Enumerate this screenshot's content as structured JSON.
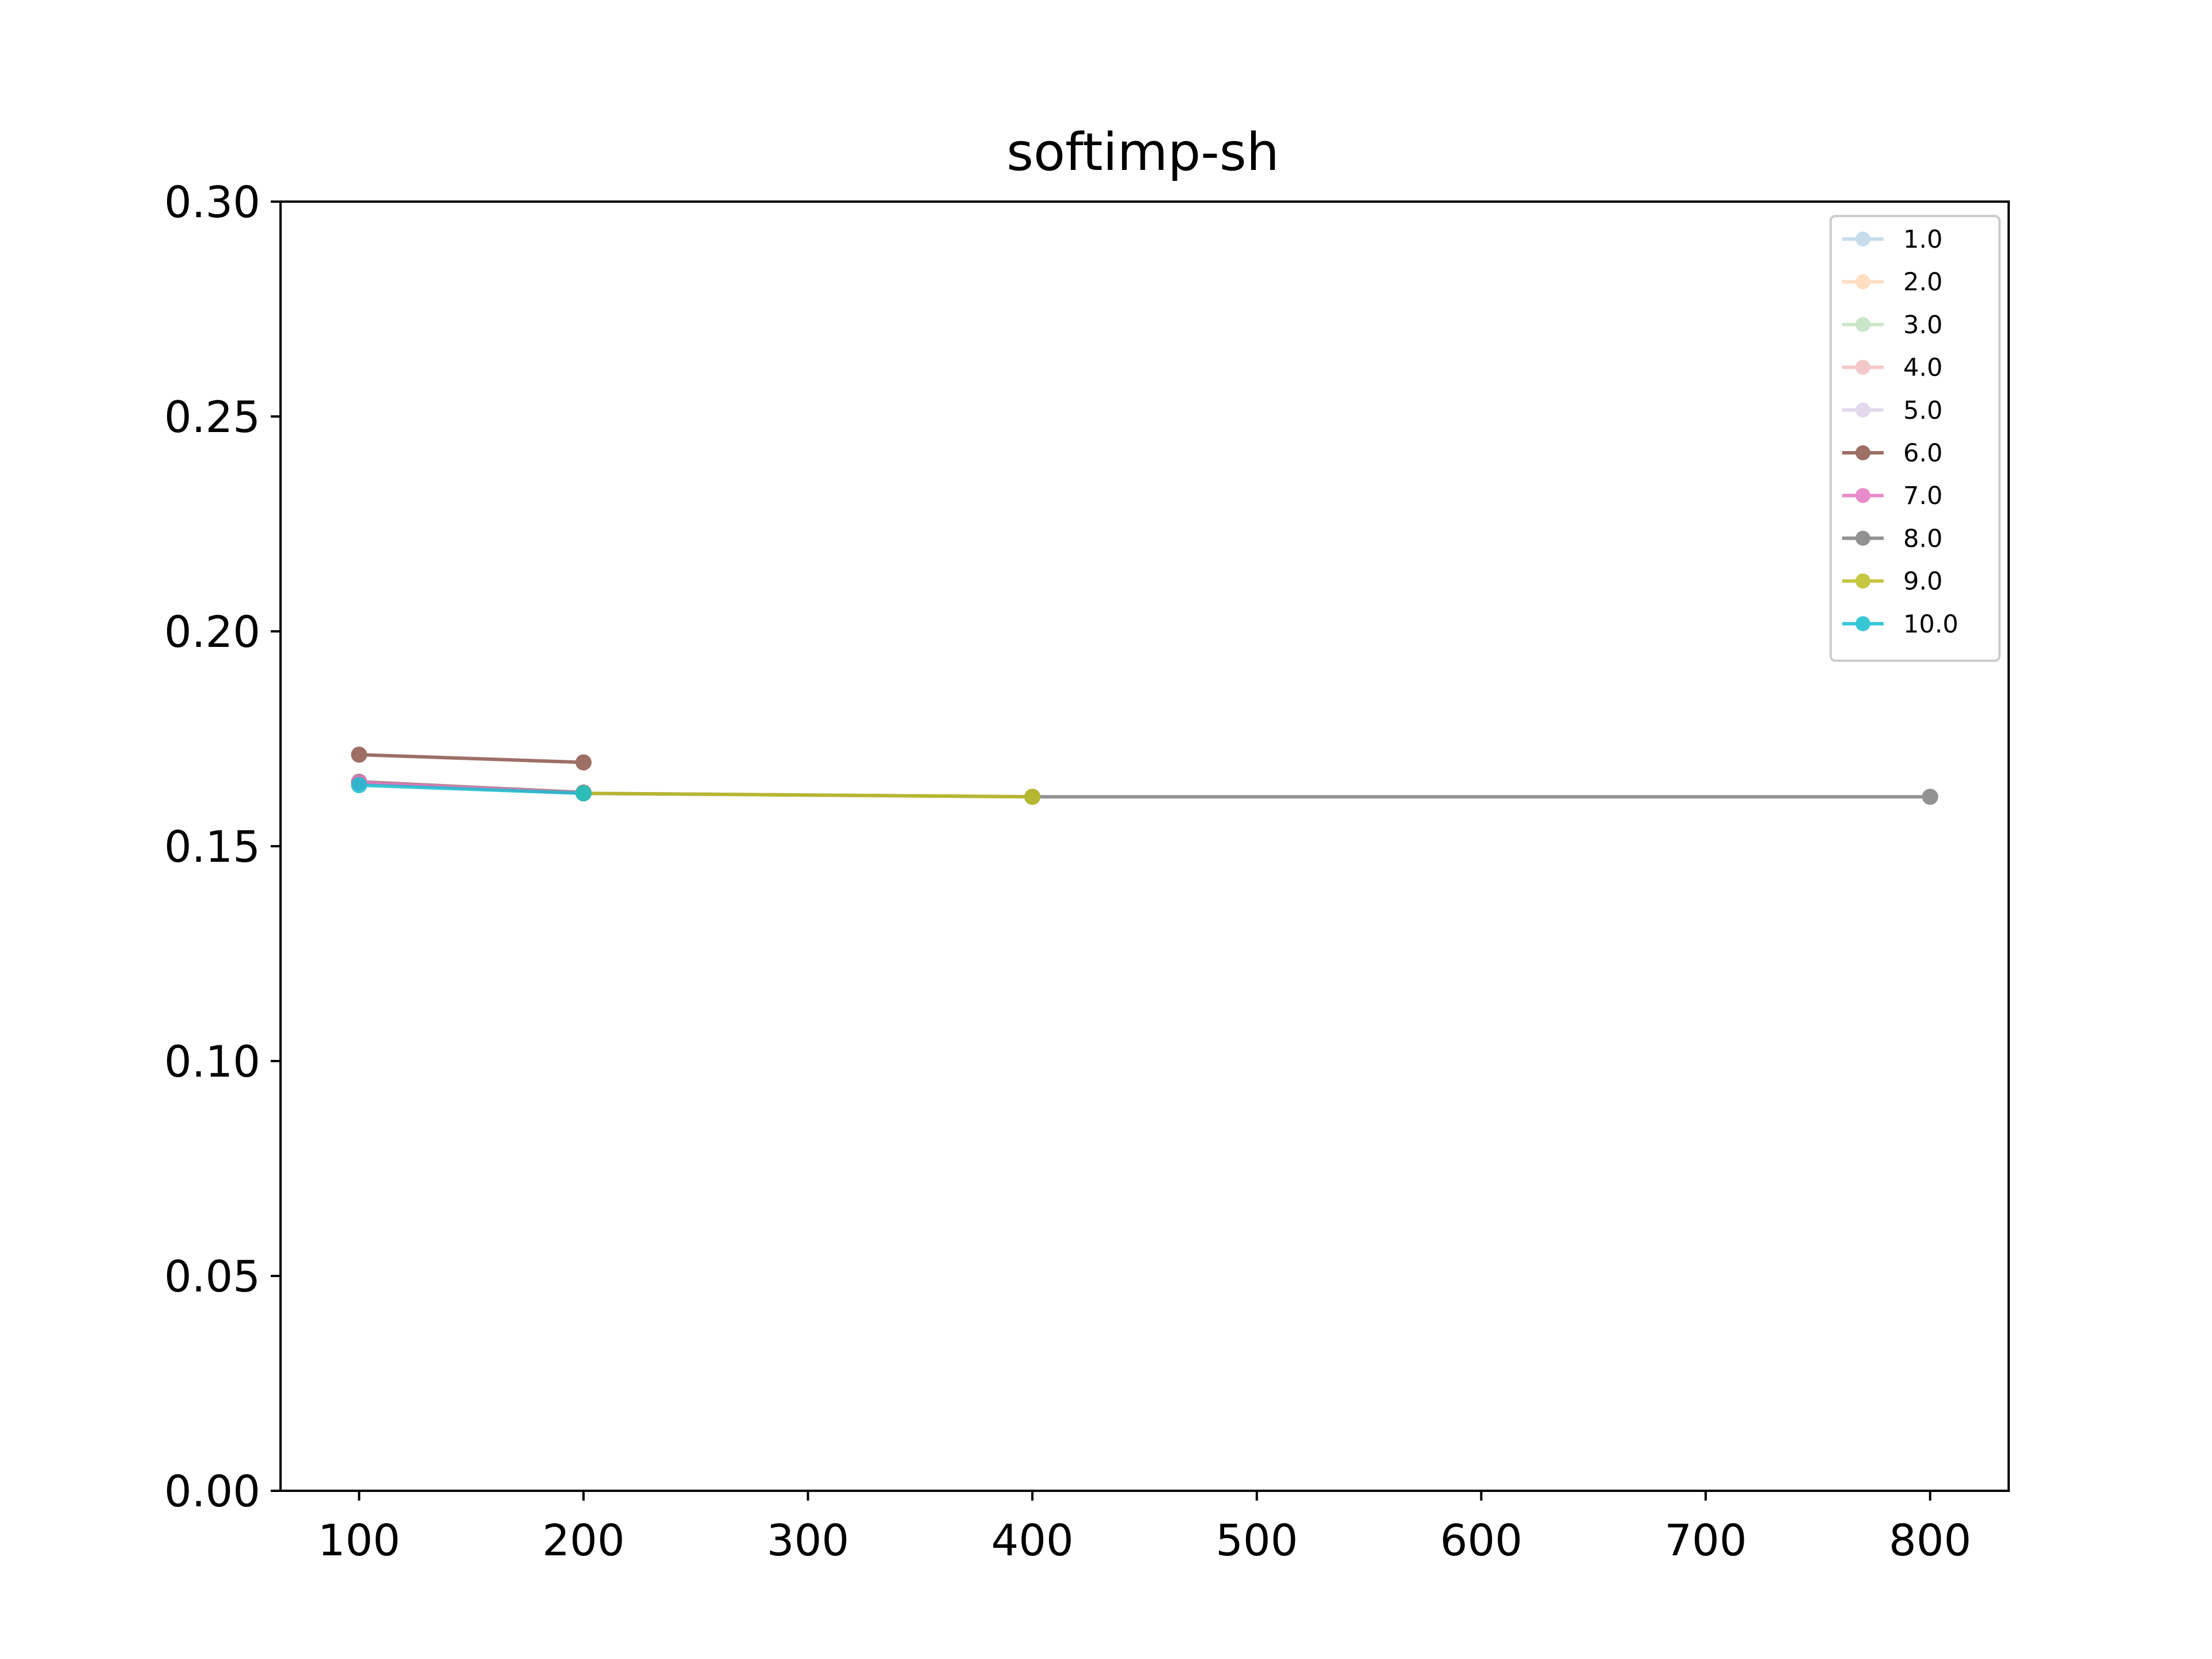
{
  "chart_data": {
    "type": "line",
    "title": "softimp-sh",
    "xlabel": "",
    "ylabel": "",
    "xlim": [
      65,
      835
    ],
    "ylim": [
      0.0,
      0.3
    ],
    "xticks": [
      100,
      200,
      300,
      400,
      500,
      600,
      700,
      800
    ],
    "xtick_labels": [
      "100",
      "200",
      "300",
      "400",
      "500",
      "600",
      "700",
      "800"
    ],
    "yticks": [
      0.0,
      0.05,
      0.1,
      0.15,
      0.2,
      0.25,
      0.3
    ],
    "ytick_labels": [
      "0.00",
      "0.05",
      "0.10",
      "0.15",
      "0.20",
      "0.25",
      "0.30"
    ],
    "grid": false,
    "legend_position": "top-right",
    "series": [
      {
        "name": "1.0",
        "color": "#1f77b4",
        "opacity": 0.25,
        "x": [
          100,
          200
        ],
        "y": [
          0.165,
          0.1625
        ]
      },
      {
        "name": "2.0",
        "color": "#ff7f0e",
        "opacity": 0.25,
        "x": [
          100,
          200
        ],
        "y": [
          0.165,
          0.1625
        ]
      },
      {
        "name": "3.0",
        "color": "#2ca02c",
        "opacity": 0.25,
        "x": [
          100,
          200
        ],
        "y": [
          0.165,
          0.1625
        ]
      },
      {
        "name": "4.0",
        "color": "#d62728",
        "opacity": 0.25,
        "x": [
          100,
          200
        ],
        "y": [
          0.165,
          0.1625
        ]
      },
      {
        "name": "5.0",
        "color": "#9467bd",
        "opacity": 0.25,
        "x": [
          100,
          200
        ],
        "y": [
          0.165,
          0.1625
        ]
      },
      {
        "name": "6.0",
        "color": "#8c564b",
        "opacity": 0.85,
        "x": [
          100,
          200
        ],
        "y": [
          0.1713,
          0.1695
        ]
      },
      {
        "name": "7.0",
        "color": "#e377c2",
        "opacity": 0.85,
        "x": [
          100,
          200
        ],
        "y": [
          0.1648,
          0.1623
        ]
      },
      {
        "name": "8.0",
        "color": "#7f7f7f",
        "opacity": 0.85,
        "x": [
          200,
          400,
          800
        ],
        "y": [
          0.1623,
          0.1615,
          0.1615
        ]
      },
      {
        "name": "9.0",
        "color": "#bcbd22",
        "opacity": 0.85,
        "x": [
          200,
          400
        ],
        "y": [
          0.1623,
          0.1615
        ]
      },
      {
        "name": "10.0",
        "color": "#17becf",
        "opacity": 0.85,
        "x": [
          100,
          200
        ],
        "y": [
          0.1642,
          0.1623
        ]
      }
    ]
  }
}
